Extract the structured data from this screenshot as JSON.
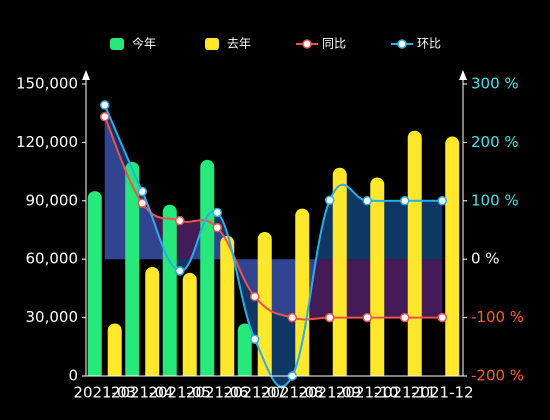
{
  "chart_data": {
    "type": "bar-line",
    "categories": [
      "2021-03",
      "2021-04",
      "2021-05",
      "2021-06",
      "2021-07",
      "2021-08",
      "2021-09",
      "2021-10",
      "2021-11",
      "2021-12"
    ],
    "series": [
      {
        "name": "今年",
        "type": "bar",
        "color": "#27e87a",
        "values": [
          95000,
          110000,
          88000,
          111000,
          27000,
          null,
          null,
          null,
          null,
          null
        ]
      },
      {
        "name": "去年",
        "type": "bar",
        "color": "#ffe72b",
        "values": [
          27000,
          56000,
          53000,
          72000,
          74000,
          86000,
          107000,
          102000,
          126000,
          123000
        ]
      },
      {
        "name": "同比",
        "type": "line",
        "axis": "y2",
        "color": "#f05050",
        "area_color": "rgba(150,60,190,0.45)",
        "values": [
          244,
          96,
          66,
          54,
          -64,
          -100,
          -100,
          -100,
          -100,
          -100
        ]
      },
      {
        "name": "环比",
        "type": "line",
        "axis": "y2",
        "color": "#2aaee8",
        "area_color": "rgba(30,110,200,0.5)",
        "values": [
          264,
          116,
          -20,
          80,
          -137,
          -200,
          101,
          100,
          100,
          100
        ]
      }
    ],
    "ylim": [
      0,
      150000
    ],
    "yticks": [
      0,
      {
        "value": 30000,
        "label": "30,000"
      },
      {
        "value": 60000,
        "label": "60,000"
      },
      {
        "value": 90000,
        "label": "90,000"
      },
      {
        "value": 120000,
        "label": "120,000"
      },
      {
        "value": 150000,
        "label": "150,000"
      }
    ],
    "y2lim": [
      -200,
      300
    ],
    "y2ticks": [
      {
        "value": -200,
        "label": "-200 %"
      },
      {
        "value": -100,
        "label": "-100 %"
      },
      {
        "value": 0,
        "label": "0 %"
      },
      {
        "value": 100,
        "label": "100 %"
      },
      {
        "value": 200,
        "label": "200 %"
      },
      {
        "value": 300,
        "label": "300 %"
      }
    ],
    "y2tick_colors": {
      "positive": "#3ee6e6",
      "zero": "#ffffff",
      "negative": "#ff5a1f"
    },
    "legend": "top"
  }
}
